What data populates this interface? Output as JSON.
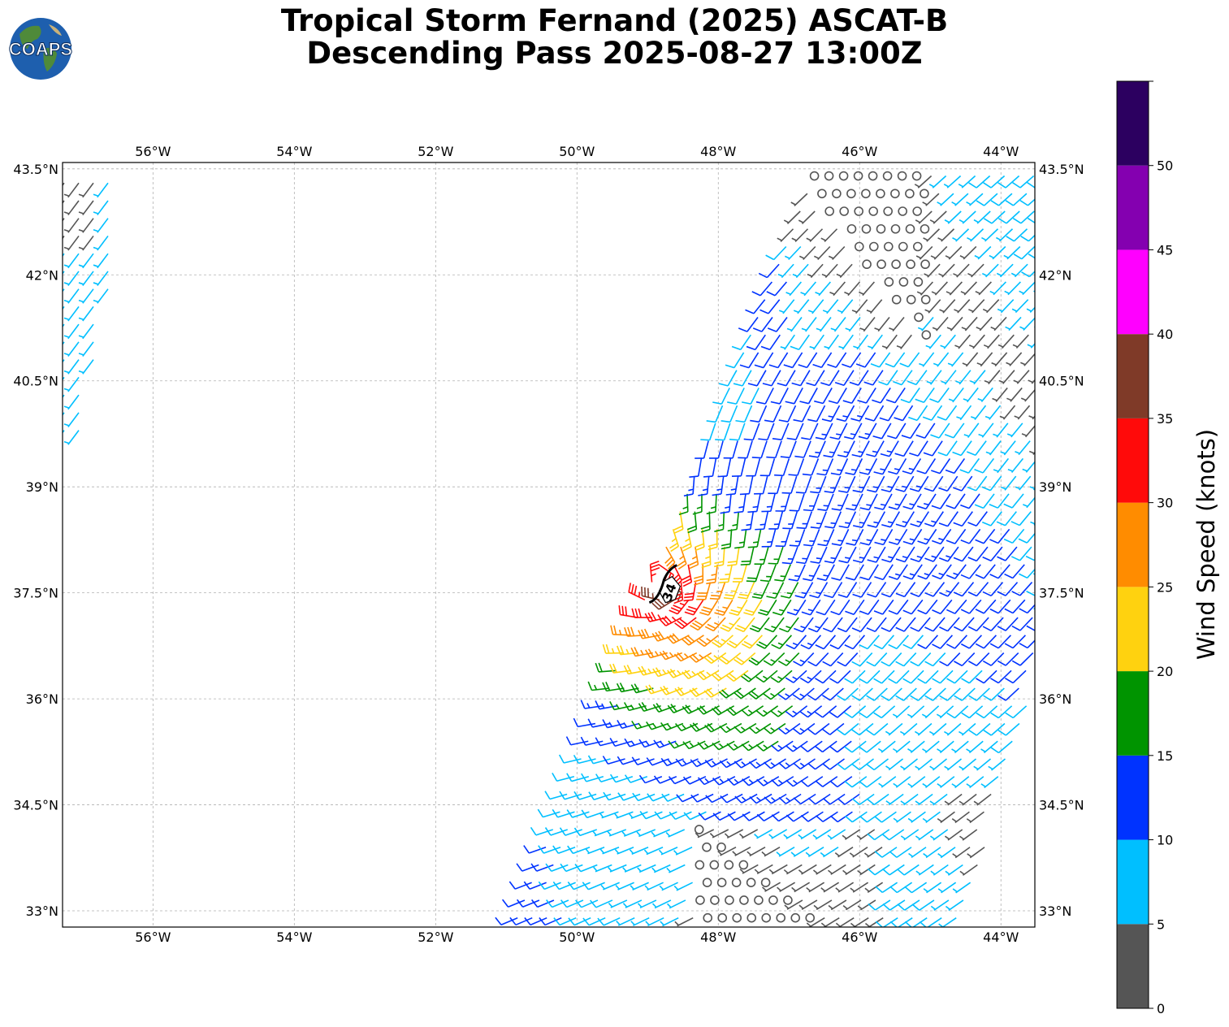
{
  "header": {
    "logo_text": "COAPS",
    "title_line1": "Tropical Storm Fernand (2025) ASCAT-B",
    "title_line2": "Descending Pass 2025-08-27 13:00Z"
  },
  "map": {
    "lon_ticks": [
      "56°W",
      "54°W",
      "52°W",
      "50°W",
      "48°W",
      "46°W",
      "44°W"
    ],
    "lon_values": [
      -56,
      -54,
      -52,
      -50,
      -48,
      -46,
      -44
    ],
    "lat_ticks": [
      "43.5°N",
      "42°N",
      "40.5°N",
      "39°N",
      "37.5°N",
      "36°N",
      "34.5°N",
      "33°N"
    ],
    "lat_values": [
      43.5,
      42,
      40.5,
      39,
      37.5,
      36,
      34.5,
      33
    ],
    "lon_range": [
      -57.28,
      -43.52
    ],
    "lat_range": [
      32.77,
      43.59
    ],
    "grid": true,
    "storm_marker_label": "34"
  },
  "colorbar": {
    "label": "Wind Speed (knots)",
    "tick_labels": [
      "0",
      "5",
      "10",
      "15",
      "20",
      "25",
      "30",
      "35",
      "40",
      "45",
      "50"
    ],
    "bins": [
      {
        "min": 0,
        "max": 5,
        "color": "#555555"
      },
      {
        "min": 5,
        "max": 10,
        "color": "#00bfff"
      },
      {
        "min": 10,
        "max": 15,
        "color": "#0033ff"
      },
      {
        "min": 15,
        "max": 20,
        "color": "#009400"
      },
      {
        "min": 20,
        "max": 25,
        "color": "#ffd20f"
      },
      {
        "min": 25,
        "max": 30,
        "color": "#ff8c00"
      },
      {
        "min": 30,
        "max": 35,
        "color": "#ff0a0a"
      },
      {
        "min": 35,
        "max": 40,
        "color": "#7f3a28"
      },
      {
        "min": 40,
        "max": 45,
        "color": "#ff00ff"
      },
      {
        "min": 45,
        "max": 50,
        "color": "#8400b0"
      },
      {
        "min": 50,
        "max": 55,
        "color": "#2c0060"
      }
    ]
  }
}
